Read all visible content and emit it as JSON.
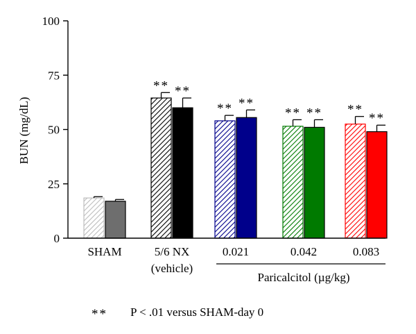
{
  "chart_data": {
    "type": "bar",
    "ylabel": "BUN (mg/dL)",
    "ylim": [
      0,
      100
    ],
    "yticks": [
      0,
      25,
      50,
      75,
      100
    ],
    "grid": false,
    "groups": [
      {
        "label": "SHAM",
        "label2": ""
      },
      {
        "label": "5/6 NX",
        "label2": "(vehicle)"
      },
      {
        "label": "0.021",
        "label2": ""
      },
      {
        "label": "0.042",
        "label2": ""
      },
      {
        "label": "0.083",
        "label2": ""
      }
    ],
    "group_caption": "Paricalcitol (µg/kg)",
    "bars": [
      {
        "group": 0,
        "value": 18.5,
        "error": 0.6,
        "color": "#bdbdbd",
        "pattern": "hatch",
        "sig": ""
      },
      {
        "group": 0,
        "value": 17.0,
        "error": 0.8,
        "color": "#6e6e6e",
        "pattern": "solid",
        "sig": ""
      },
      {
        "group": 1,
        "value": 64.5,
        "error": 2.5,
        "color": "#000000",
        "pattern": "hatch",
        "sig": "**"
      },
      {
        "group": 1,
        "value": 60.0,
        "error": 4.5,
        "color": "#000000",
        "pattern": "solid",
        "sig": "**"
      },
      {
        "group": 2,
        "value": 54.0,
        "error": 2.5,
        "color": "#00008b",
        "pattern": "hatch",
        "sig": "**"
      },
      {
        "group": 2,
        "value": 55.5,
        "error": 3.5,
        "color": "#00008b",
        "pattern": "solid",
        "sig": "**"
      },
      {
        "group": 3,
        "value": 51.5,
        "error": 3.0,
        "color": "#007a00",
        "pattern": "hatch",
        "sig": "**"
      },
      {
        "group": 3,
        "value": 51.0,
        "error": 3.5,
        "color": "#007a00",
        "pattern": "solid",
        "sig": "**"
      },
      {
        "group": 4,
        "value": 52.5,
        "error": 3.5,
        "color": "#ff0000",
        "pattern": "hatch",
        "sig": "**"
      },
      {
        "group": 4,
        "value": 49.0,
        "error": 3.0,
        "color": "#ff0000",
        "pattern": "solid",
        "sig": "**"
      }
    ],
    "footnote_symbol": "**",
    "footnote_text": "P < .01 versus SHAM-day 0"
  }
}
